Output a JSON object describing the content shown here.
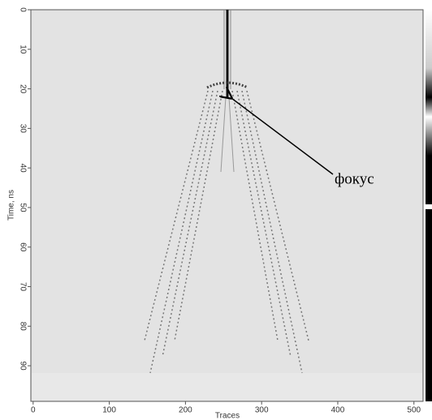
{
  "chart_data": {
    "type": "image",
    "x_label": "Traces",
    "y_label": "Time, ns",
    "xlim": [
      -3,
      512
    ],
    "xticks": [
      0,
      100,
      200,
      300,
      400,
      500
    ],
    "ylim": [
      0,
      99
    ],
    "yticks": [
      0,
      10,
      20,
      30,
      40,
      50,
      60,
      70,
      80,
      90
    ],
    "y_inverted": true,
    "annotation": "фокус"
  }
}
